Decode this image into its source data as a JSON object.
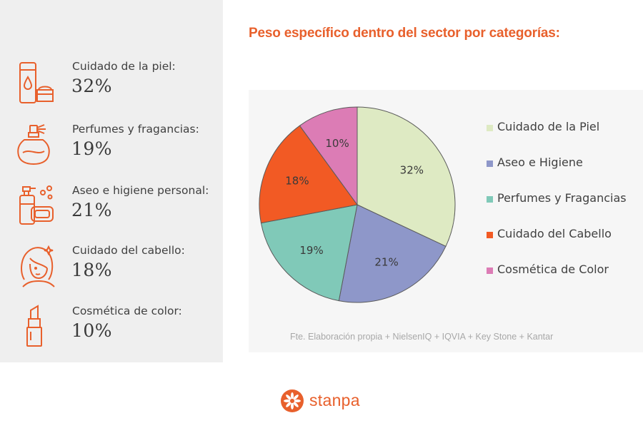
{
  "categories_panel": [
    {
      "icon": "skincare-icon",
      "label": "Cuidado de la piel:",
      "value": "32%"
    },
    {
      "icon": "perfume-icon",
      "label": "Perfumes y fragancias:",
      "value": "19%"
    },
    {
      "icon": "soap-icon",
      "label": "Aseo e higiene personal:",
      "value": "21%"
    },
    {
      "icon": "hair-care-icon",
      "label": "Cuidado del cabello:",
      "value": "18%"
    },
    {
      "icon": "lipstick-icon",
      "label": "Cosmética de color:",
      "value": "10%"
    }
  ],
  "colors": {
    "accent": "#e8602c",
    "panel_bg": "#efefef"
  },
  "chart_data": {
    "type": "pie",
    "title": "Peso específico dentro del sector por categorías:",
    "categories": [
      "Cuidado de la Piel",
      "Aseo e Higiene",
      "Perfumes y Fragancias",
      "Cuidado del Cabello",
      "Cosmética de Color"
    ],
    "values": [
      32,
      21,
      19,
      18,
      10
    ],
    "labels": [
      "32%",
      "21%",
      "19%",
      "18%",
      "10%"
    ],
    "colors": [
      "#deeac3",
      "#8e97c9",
      "#80c9b8",
      "#f25a24",
      "#dc7cb5"
    ],
    "legend": "right",
    "source": "Fte. Elaboración propia + NielsenIQ + IQVIA + Key Stone + Kantar"
  },
  "brand": {
    "name": "stanpa"
  }
}
